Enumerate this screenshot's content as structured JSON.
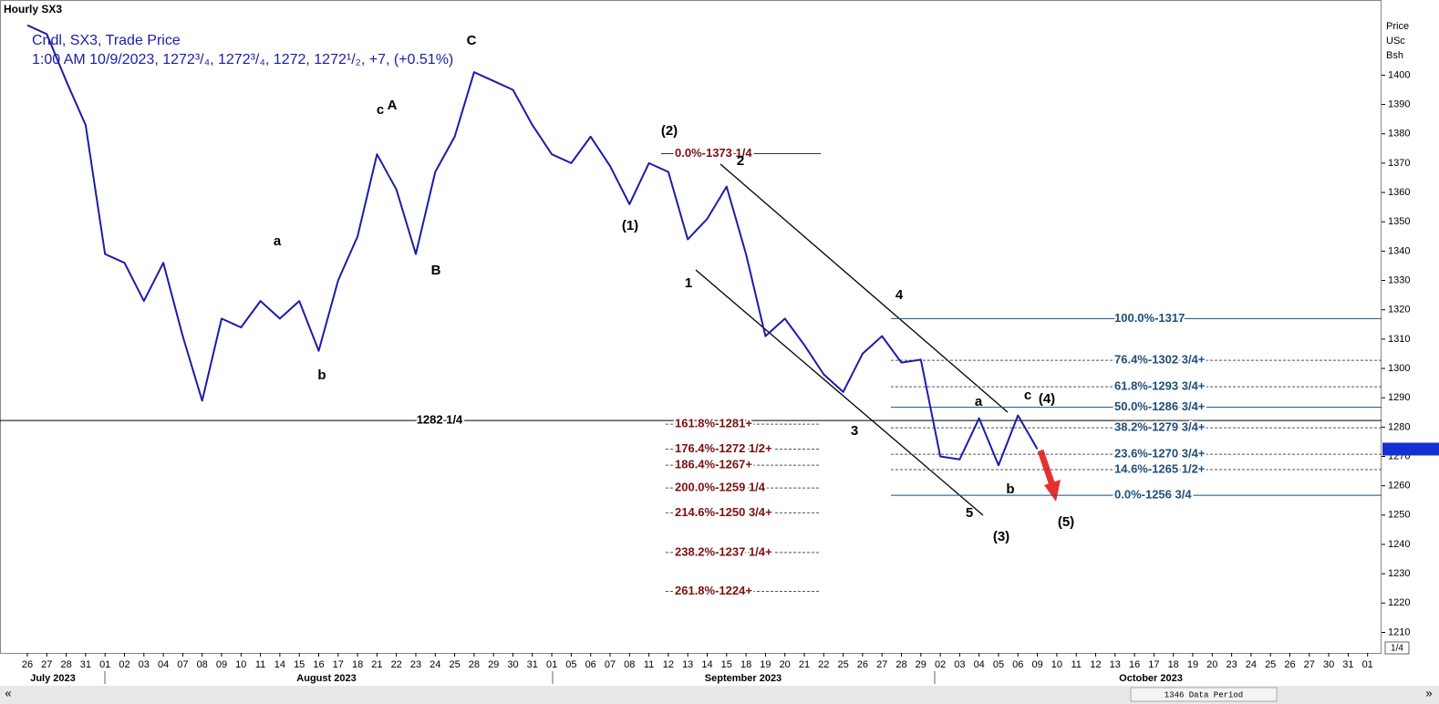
{
  "chart_data": {
    "type": "line",
    "title": "Hourly SX3",
    "subtitle": "Cndl, SX3, Trade Price",
    "info": "1:00 AM 10/9/2023, 1272³/₄, 1272³/₄, 1272, 1272¹/₂, +7, (+0.51%)",
    "y_axis_label": [
      "Price",
      "USc",
      "Bsh"
    ],
    "categories": [
      "26",
      "27",
      "28",
      "31",
      "01",
      "02",
      "03",
      "04",
      "07",
      "08",
      "09",
      "10",
      "11",
      "14",
      "15",
      "16",
      "17",
      "18",
      "21",
      "22",
      "23",
      "24",
      "25",
      "28",
      "29",
      "30",
      "31",
      "01",
      "05",
      "06",
      "07",
      "08",
      "11",
      "12",
      "13",
      "14",
      "15",
      "18",
      "19",
      "20",
      "21",
      "22",
      "25",
      "26",
      "27",
      "28",
      "29",
      "02",
      "03",
      "04",
      "05",
      "06",
      "09",
      "10",
      "11",
      "12",
      "13",
      "16",
      "17",
      "18",
      "19",
      "20",
      "23",
      "24",
      "25",
      "26",
      "27",
      "30",
      "31",
      "01"
    ],
    "months": [
      "July 2023",
      "August 2023",
      "September 2023",
      "October 2023"
    ],
    "series": [
      {
        "name": "SX3",
        "color": "#1c1ca8",
        "values": [
          1417,
          1414,
          1398,
          1383,
          1339,
          1336,
          1323,
          1336,
          1311,
          1289,
          1317,
          1314,
          1323,
          1317,
          1323,
          1306,
          1330,
          1345,
          1373,
          1361,
          1339,
          1367,
          1379,
          1401,
          1398,
          1395,
          1383,
          1373,
          1370,
          1379,
          1369,
          1356,
          1370,
          1367,
          1344,
          1351,
          1362,
          1339,
          1311,
          1317,
          1308,
          1298,
          1292,
          1305,
          1311,
          1302,
          1303,
          1270,
          1269,
          1283,
          1267,
          1284,
          1272.5,
          null,
          null,
          null,
          null,
          null,
          null,
          null,
          null,
          null,
          null,
          null,
          null,
          null,
          null,
          null,
          null,
          null
        ]
      }
    ],
    "ylim": [
      1203,
      1425
    ],
    "yticks": [
      1210,
      1220,
      1230,
      1240,
      1250,
      1260,
      1270,
      1280,
      1290,
      1300,
      1310,
      1320,
      1330,
      1340,
      1350,
      1360,
      1370,
      1380,
      1390,
      1400
    ],
    "grid": false,
    "support_line": {
      "value": 1282.25,
      "label": "1282 1/4"
    },
    "fib_extension": {
      "color": "#7b1010",
      "levels": [
        {
          "value": 1373.25,
          "label": "0.0%-1373 1/4"
        },
        {
          "value": 1281,
          "label": "161.8%-1281+"
        },
        {
          "value": 1272.5,
          "label": "176.4%-1272 1/2+"
        },
        {
          "value": 1267,
          "label": "186.4%-1267+"
        },
        {
          "value": 1259.25,
          "label": "200.0%-1259 1/4"
        },
        {
          "value": 1250.75,
          "label": "214.6%-1250 3/4+"
        },
        {
          "value": 1237.25,
          "label": "238.2%-1237 1/4+"
        },
        {
          "value": 1224,
          "label": "261.8%-1224+"
        }
      ]
    },
    "fib_retracement": {
      "color": "#1f4e79",
      "levels": [
        {
          "value": 1317,
          "label": "100.0%-1317"
        },
        {
          "value": 1302.75,
          "label": "76.4%-1302 3/4+"
        },
        {
          "value": 1293.75,
          "label": "61.8%-1293 3/4+"
        },
        {
          "value": 1286.75,
          "label": "50.0%-1286 3/4+"
        },
        {
          "value": 1279.75,
          "label": "38.2%-1279 3/4+"
        },
        {
          "value": 1270.75,
          "label": "23.6%-1270 3/4+"
        },
        {
          "value": 1265.5,
          "label": "14.6%-1265 1/2+"
        },
        {
          "value": 1256.75,
          "label": "0.0%-1256 3/4"
        }
      ]
    },
    "last_price": 1272.5,
    "wave_labels": [
      "C",
      "c",
      "A",
      "a",
      "b",
      "B",
      "(2)",
      "2",
      "(1)",
      "1",
      "3",
      "4",
      "5",
      "(3)",
      "a",
      "b",
      "c",
      "(4)",
      "(5)"
    ],
    "footer": "1346 Data Period",
    "zoom": "1/4",
    "nav": [
      "«",
      "»"
    ]
  }
}
